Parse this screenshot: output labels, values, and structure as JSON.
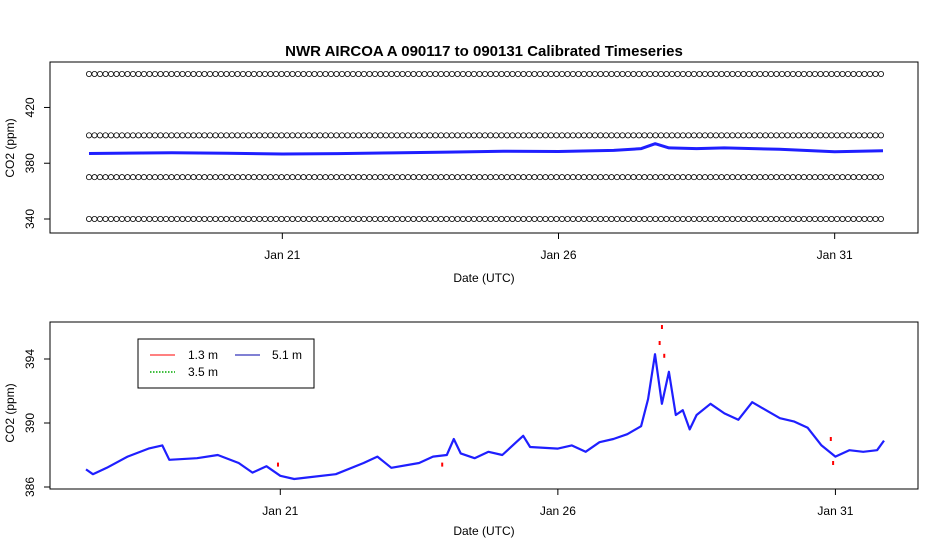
{
  "chart_data": [
    {
      "type": "line",
      "title": "NWR   AIRCOA  A    090117  to  090131   Calibrated Timeseries",
      "xlabel": "Date (UTC)",
      "ylabel": "CO2 (ppm)",
      "x_domain": [
        "2009-01-17T12:00",
        "2009-01-31T21:00"
      ],
      "xticks": [
        {
          "x": "2009-01-21T00:00",
          "label": "Jan 21"
        },
        {
          "x": "2009-01-26T00:00",
          "label": "Jan 26"
        },
        {
          "x": "2009-01-31T00:00",
          "label": "Jan 31"
        }
      ],
      "ylim": [
        336,
        450
      ],
      "yticks": [
        340,
        380,
        420
      ],
      "grid": false,
      "reference_series": [
        {
          "name": "",
          "y": 444,
          "marker": "open-circle"
        },
        {
          "name": "",
          "y": 400,
          "marker": "open-circle"
        },
        {
          "name": "",
          "y": 370,
          "marker": "open-circle"
        },
        {
          "name": "",
          "y": 340,
          "marker": "open-circle"
        }
      ],
      "series": [
        {
          "name": "",
          "color": "#1f1fff",
          "points": [
            [
              "2009-01-17T12:00",
              387.0
            ],
            [
              "2009-01-19T00:00",
              387.5
            ],
            [
              "2009-01-20T00:00",
              387.2
            ],
            [
              "2009-01-21T00:00",
              386.6
            ],
            [
              "2009-01-22T00:00",
              386.9
            ],
            [
              "2009-01-23T00:00",
              387.4
            ],
            [
              "2009-01-24T00:00",
              388.0
            ],
            [
              "2009-01-25T00:00",
              388.6
            ],
            [
              "2009-01-26T00:00",
              388.4
            ],
            [
              "2009-01-27T00:00",
              389.2
            ],
            [
              "2009-01-27T12:00",
              390.5
            ],
            [
              "2009-01-27T18:00",
              394.0
            ],
            [
              "2009-01-28T00:00",
              391.0
            ],
            [
              "2009-01-28T12:00",
              390.5
            ],
            [
              "2009-01-29T00:00",
              391.0
            ],
            [
              "2009-01-30T00:00",
              390.0
            ],
            [
              "2009-01-31T00:00",
              388.2
            ],
            [
              "2009-01-31T21:00",
              388.9
            ]
          ]
        }
      ]
    },
    {
      "type": "line",
      "title": "",
      "xlabel": "Date (UTC)",
      "ylabel": "CO2 (ppm)",
      "x_domain": [
        "2009-01-17T12:00",
        "2009-01-31T21:00"
      ],
      "xticks": [
        {
          "x": "2009-01-21T00:00",
          "label": "Jan 21"
        },
        {
          "x": "2009-01-26T00:00",
          "label": "Jan 26"
        },
        {
          "x": "2009-01-31T00:00",
          "label": "Jan 31"
        }
      ],
      "ylim": [
        386,
        396
      ],
      "yticks": [
        386,
        390,
        394
      ],
      "grid": false,
      "legend": {
        "placement": "top-left",
        "entries": [
          {
            "name": "1.3 m",
            "color": "#ff0000",
            "style": "solid"
          },
          {
            "name": "5.1 m",
            "color": "#0000aa",
            "style": "solid"
          },
          {
            "name": "3.5 m",
            "color": "#00aa00",
            "style": "dotted"
          }
        ]
      },
      "series": [
        {
          "name": "5.1 m",
          "color": "#1f1fff",
          "points": [
            [
              "2009-01-17T12:00",
              387.1
            ],
            [
              "2009-01-17T15:00",
              386.8
            ],
            [
              "2009-01-17T21:00",
              387.2
            ],
            [
              "2009-01-18T06:00",
              387.9
            ],
            [
              "2009-01-18T15:00",
              388.4
            ],
            [
              "2009-01-18T21:00",
              388.6
            ],
            [
              "2009-01-19T00:00",
              387.7
            ],
            [
              "2009-01-19T12:00",
              387.8
            ],
            [
              "2009-01-19T21:00",
              388.0
            ],
            [
              "2009-01-20T06:00",
              387.5
            ],
            [
              "2009-01-20T12:00",
              386.9
            ],
            [
              "2009-01-20T18:00",
              387.3
            ],
            [
              "2009-01-21T00:00",
              386.7
            ],
            [
              "2009-01-21T06:00",
              386.5
            ],
            [
              "2009-01-21T12:00",
              386.6
            ],
            [
              "2009-01-22T00:00",
              386.8
            ],
            [
              "2009-01-22T12:00",
              387.5
            ],
            [
              "2009-01-22T18:00",
              387.9
            ],
            [
              "2009-01-23T00:00",
              387.2
            ],
            [
              "2009-01-23T12:00",
              387.5
            ],
            [
              "2009-01-23T18:00",
              387.9
            ],
            [
              "2009-01-24T00:00",
              388.0
            ],
            [
              "2009-01-24T03:00",
              389.0
            ],
            [
              "2009-01-24T06:00",
              388.1
            ],
            [
              "2009-01-24T12:00",
              387.8
            ],
            [
              "2009-01-24T18:00",
              388.2
            ],
            [
              "2009-01-25T00:00",
              388.0
            ],
            [
              "2009-01-25T06:00",
              388.8
            ],
            [
              "2009-01-25T09:00",
              389.2
            ],
            [
              "2009-01-25T12:00",
              388.5
            ],
            [
              "2009-01-26T00:00",
              388.4
            ],
            [
              "2009-01-26T06:00",
              388.6
            ],
            [
              "2009-01-26T12:00",
              388.2
            ],
            [
              "2009-01-26T18:00",
              388.8
            ],
            [
              "2009-01-27T00:00",
              389.0
            ],
            [
              "2009-01-27T06:00",
              389.3
            ],
            [
              "2009-01-27T12:00",
              389.8
            ],
            [
              "2009-01-27T15:00",
              391.5
            ],
            [
              "2009-01-27T18:00",
              394.3
            ],
            [
              "2009-01-27T21:00",
              391.2
            ],
            [
              "2009-01-28T00:00",
              393.2
            ],
            [
              "2009-01-28T03:00",
              390.5
            ],
            [
              "2009-01-28T06:00",
              390.8
            ],
            [
              "2009-01-28T09:00",
              389.6
            ],
            [
              "2009-01-28T12:00",
              390.5
            ],
            [
              "2009-01-28T18:00",
              391.2
            ],
            [
              "2009-01-29T00:00",
              390.6
            ],
            [
              "2009-01-29T06:00",
              390.2
            ],
            [
              "2009-01-29T12:00",
              391.3
            ],
            [
              "2009-01-29T18:00",
              390.8
            ],
            [
              "2009-01-30T00:00",
              390.3
            ],
            [
              "2009-01-30T06:00",
              390.1
            ],
            [
              "2009-01-30T12:00",
              389.7
            ],
            [
              "2009-01-30T18:00",
              388.6
            ],
            [
              "2009-01-31T00:00",
              387.9
            ],
            [
              "2009-01-31T06:00",
              388.3
            ],
            [
              "2009-01-31T12:00",
              388.2
            ],
            [
              "2009-01-31T18:00",
              388.3
            ],
            [
              "2009-01-31T21:00",
              388.9
            ]
          ]
        },
        {
          "name": "1.3 m",
          "color": "#ff0000",
          "points": [
            [
              "2009-01-20T23:00",
              387.4
            ],
            [
              "2009-01-23T22:00",
              387.4
            ],
            [
              "2009-01-27T20:00",
              395.0
            ],
            [
              "2009-01-27T21:00",
              396.0
            ],
            [
              "2009-01-27T22:00",
              394.2
            ],
            [
              "2009-01-30T22:00",
              389.0
            ],
            [
              "2009-01-30T23:00",
              387.5
            ]
          ]
        }
      ]
    }
  ]
}
